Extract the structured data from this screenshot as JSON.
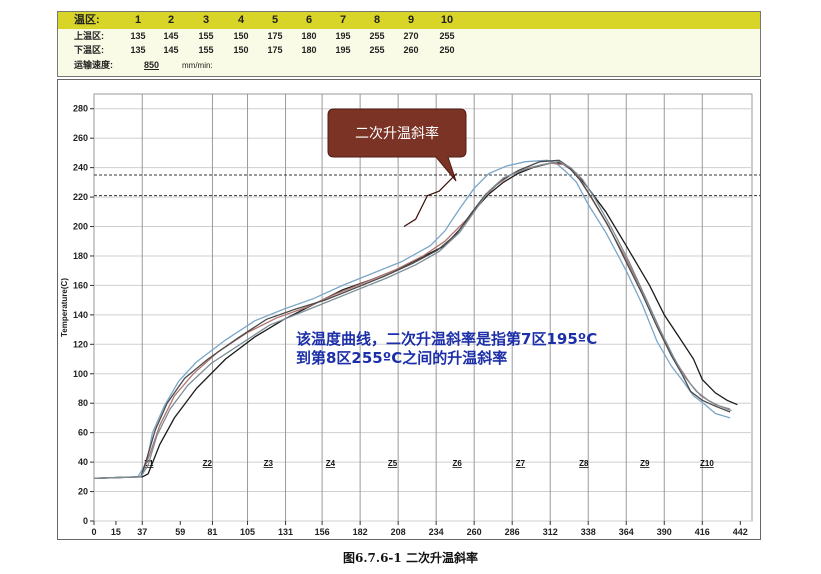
{
  "table": {
    "zone_label": "温区:",
    "upper_label": "上温区:",
    "lower_label": "下温区:",
    "speed_label": "运输速度:",
    "zones": [
      "1",
      "2",
      "3",
      "4",
      "5",
      "6",
      "7",
      "8",
      "9",
      "10"
    ],
    "upper": [
      "135",
      "145",
      "155",
      "150",
      "175",
      "180",
      "195",
      "255",
      "270",
      "255"
    ],
    "lower": [
      "135",
      "145",
      "155",
      "150",
      "175",
      "180",
      "195",
      "255",
      "260",
      "250"
    ],
    "speed_value": "850",
    "speed_unit": "mm/min:"
  },
  "chart_data": {
    "type": "line",
    "ylabel": "Temperature(C)",
    "ylim": [
      0,
      290
    ],
    "xlim": [
      0,
      450
    ],
    "y_ticks": [
      0,
      20,
      40,
      60,
      80,
      100,
      120,
      140,
      160,
      180,
      200,
      220,
      240,
      260,
      280
    ],
    "x_ticks": [
      0,
      15,
      37,
      59,
      81,
      105,
      131,
      156,
      182,
      208,
      234,
      260,
      286,
      312,
      338,
      364,
      390,
      416,
      442
    ],
    "zone_boundaries": [
      33,
      81,
      105,
      131,
      156,
      182,
      208,
      234,
      260,
      286,
      312,
      338,
      364,
      390,
      416
    ],
    "zone_labels": [
      {
        "label": "Z1",
        "x": 45
      },
      {
        "label": "Z2",
        "x": 93
      },
      {
        "label": "Z3",
        "x": 143
      },
      {
        "label": "Z4",
        "x": 194
      },
      {
        "label": "Z5",
        "x": 245
      },
      {
        "label": "Z6",
        "x": 298
      },
      {
        "label": "Z7",
        "x": 350
      },
      {
        "label": "Z8",
        "x": 402
      },
      {
        "label": "Z9",
        "x": 452
      },
      {
        "label": "Z10",
        "x": 503
      }
    ],
    "reference_lines": [
      235,
      221
    ],
    "series": [
      {
        "color": "#1a1a1a",
        "points": [
          [
            0,
            29
          ],
          [
            33,
            30
          ],
          [
            37,
            32
          ],
          [
            45,
            52
          ],
          [
            55,
            70
          ],
          [
            70,
            90
          ],
          [
            90,
            110
          ],
          [
            110,
            125
          ],
          [
            130,
            137
          ],
          [
            150,
            147
          ],
          [
            170,
            157
          ],
          [
            190,
            164
          ],
          [
            210,
            172
          ],
          [
            230,
            182
          ],
          [
            240,
            187
          ],
          [
            250,
            198
          ],
          [
            260,
            211
          ],
          [
            270,
            222
          ],
          [
            280,
            230
          ],
          [
            290,
            236
          ],
          [
            300,
            240
          ],
          [
            312,
            243
          ],
          [
            320,
            243
          ],
          [
            330,
            236
          ],
          [
            338,
            226
          ],
          [
            350,
            210
          ],
          [
            364,
            187
          ],
          [
            380,
            160
          ],
          [
            390,
            140
          ],
          [
            400,
            125
          ],
          [
            410,
            110
          ],
          [
            416,
            96
          ],
          [
            425,
            87
          ],
          [
            433,
            82
          ],
          [
            440,
            79
          ]
        ]
      },
      {
        "color": "#7aa6c8",
        "points": [
          [
            0,
            29
          ],
          [
            30,
            30
          ],
          [
            36,
            40
          ],
          [
            40,
            60
          ],
          [
            48,
            78
          ],
          [
            58,
            95
          ],
          [
            70,
            108
          ],
          [
            90,
            123
          ],
          [
            110,
            136
          ],
          [
            130,
            144
          ],
          [
            150,
            151
          ],
          [
            170,
            160
          ],
          [
            190,
            168
          ],
          [
            210,
            176
          ],
          [
            230,
            187
          ],
          [
            240,
            197
          ],
          [
            250,
            212
          ],
          [
            260,
            226
          ],
          [
            270,
            236
          ],
          [
            282,
            241
          ],
          [
            295,
            244
          ],
          [
            310,
            245
          ],
          [
            316,
            243
          ],
          [
            322,
            238
          ],
          [
            330,
            230
          ],
          [
            338,
            215
          ],
          [
            350,
            196
          ],
          [
            364,
            170
          ],
          [
            375,
            147
          ],
          [
            385,
            122
          ],
          [
            395,
            105
          ],
          [
            402,
            96
          ],
          [
            410,
            85
          ],
          [
            418,
            79
          ],
          [
            425,
            73
          ],
          [
            435,
            70
          ]
        ]
      },
      {
        "color": "#b07470",
        "points": [
          [
            0,
            29
          ],
          [
            32,
            30
          ],
          [
            38,
            45
          ],
          [
            45,
            65
          ],
          [
            55,
            85
          ],
          [
            68,
            100
          ],
          [
            85,
            115
          ],
          [
            105,
            128
          ],
          [
            125,
            138
          ],
          [
            145,
            145
          ],
          [
            165,
            154
          ],
          [
            185,
            162
          ],
          [
            205,
            170
          ],
          [
            225,
            180
          ],
          [
            240,
            190
          ],
          [
            255,
            205
          ],
          [
            265,
            218
          ],
          [
            275,
            228
          ],
          [
            285,
            235
          ],
          [
            298,
            240
          ],
          [
            312,
            243
          ],
          [
            322,
            242
          ],
          [
            330,
            236
          ],
          [
            338,
            223
          ],
          [
            350,
            203
          ],
          [
            364,
            178
          ],
          [
            378,
            150
          ],
          [
            388,
            128
          ],
          [
            398,
            108
          ],
          [
            408,
            93
          ],
          [
            415,
            85
          ],
          [
            425,
            79
          ],
          [
            435,
            76
          ]
        ]
      },
      {
        "color": "#4a4a4a",
        "points": [
          [
            0,
            29
          ],
          [
            32,
            30
          ],
          [
            36,
            42
          ],
          [
            42,
            62
          ],
          [
            50,
            80
          ],
          [
            62,
            97
          ],
          [
            78,
            110
          ],
          [
            98,
            124
          ],
          [
            118,
            137
          ],
          [
            138,
            144
          ],
          [
            158,
            150
          ],
          [
            178,
            158
          ],
          [
            198,
            166
          ],
          [
            218,
            175
          ],
          [
            235,
            184
          ],
          [
            248,
            195
          ],
          [
            258,
            209
          ],
          [
            268,
            222
          ],
          [
            278,
            231
          ],
          [
            290,
            238
          ],
          [
            305,
            244
          ],
          [
            318,
            245
          ],
          [
            324,
            241
          ],
          [
            332,
            232
          ],
          [
            340,
            220
          ],
          [
            352,
            200
          ],
          [
            364,
            176
          ],
          [
            375,
            154
          ],
          [
            385,
            132
          ],
          [
            395,
            112
          ],
          [
            402,
            100
          ],
          [
            408,
            88
          ],
          [
            416,
            82
          ],
          [
            425,
            78
          ],
          [
            435,
            74
          ]
        ]
      },
      {
        "color": "#7d8d96",
        "points": [
          [
            0,
            29
          ],
          [
            32,
            30
          ],
          [
            37,
            38
          ],
          [
            43,
            58
          ],
          [
            52,
            76
          ],
          [
            64,
            92
          ],
          [
            80,
            107
          ],
          [
            100,
            120
          ],
          [
            120,
            133
          ],
          [
            140,
            141
          ],
          [
            160,
            149
          ],
          [
            180,
            157
          ],
          [
            200,
            165
          ],
          [
            220,
            174
          ],
          [
            236,
            183
          ],
          [
            250,
            196
          ],
          [
            260,
            210
          ],
          [
            270,
            224
          ],
          [
            280,
            233
          ],
          [
            292,
            238
          ],
          [
            306,
            242
          ],
          [
            318,
            244
          ],
          [
            326,
            240
          ],
          [
            334,
            232
          ],
          [
            342,
            220
          ],
          [
            354,
            199
          ],
          [
            366,
            176
          ],
          [
            377,
            152
          ],
          [
            387,
            130
          ],
          [
            396,
            112
          ],
          [
            404,
            98
          ],
          [
            412,
            88
          ],
          [
            420,
            82
          ],
          [
            428,
            78
          ],
          [
            436,
            75
          ]
        ]
      }
    ],
    "annotations": [
      {
        "text": "二次升温斜率",
        "type": "callout"
      },
      {
        "text": "该温度曲线，二次升温斜率是指第7区195ºC",
        "type": "note"
      },
      {
        "text": "到第8区255ºC之间的升温斜率",
        "type": "note"
      }
    ]
  },
  "caption": "图6.7.6-1 二次升温斜率"
}
